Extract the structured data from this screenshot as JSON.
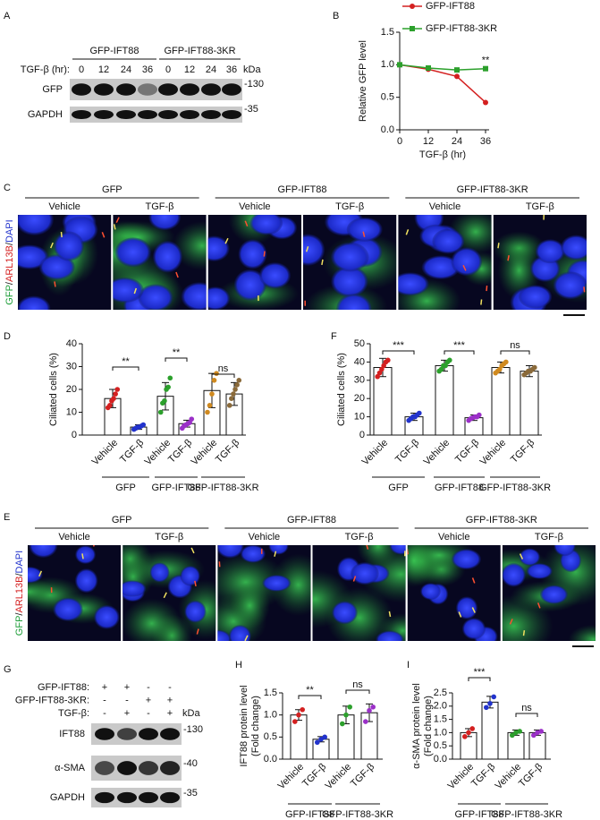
{
  "blot_a": {
    "label": "A",
    "groups": [
      "GFP-IFT88",
      "GFP-IFT88-3KR"
    ],
    "condition": "TGF-β (hr):",
    "lanes": [
      0,
      12,
      24,
      36,
      0,
      12,
      24,
      36
    ],
    "unit": "kDa",
    "rows": [
      {
        "name": "GFP",
        "marker": "-130"
      },
      {
        "name": "GAPDH",
        "marker": "-35"
      }
    ]
  },
  "images_c": {
    "label": "C",
    "stain": [
      {
        "text": "GFP",
        "color": "#1f9e3a"
      },
      {
        "text": "/",
        "color": "#111111"
      },
      {
        "text": "ARL13B",
        "color": "#d42020"
      },
      {
        "text": "/",
        "color": "#111111"
      },
      {
        "text": "DAPI",
        "color": "#2233cc"
      }
    ],
    "groups": [
      "GFP",
      "GFP-IFT88",
      "GFP-IFT88-3KR"
    ],
    "conditions": [
      "Vehicle",
      "TGF-β"
    ]
  },
  "images_e": {
    "label": "E",
    "stain": [
      {
        "text": "GFP",
        "color": "#1f9e3a"
      },
      {
        "text": "/",
        "color": "#111111"
      },
      {
        "text": "ARL13B",
        "color": "#d42020"
      },
      {
        "text": "/",
        "color": "#111111"
      },
      {
        "text": "DAPI",
        "color": "#2233cc"
      }
    ],
    "groups": [
      "GFP",
      "GFP-IFT88",
      "GFP-IFT88-3KR"
    ],
    "conditions": [
      "Vehicle",
      "TGF-β"
    ]
  },
  "blot_g": {
    "label": "G",
    "conditions": [
      {
        "name": "GFP-IFT88:",
        "signs": [
          "+",
          "+",
          "-",
          "-"
        ]
      },
      {
        "name": "GFP-IFT88-3KR:",
        "signs": [
          "-",
          "-",
          "+",
          "+"
        ]
      },
      {
        "name": "TGF-β:",
        "signs": [
          "-",
          "+",
          "-",
          "+"
        ]
      }
    ],
    "unit": "kDa",
    "rows": [
      {
        "name": "IFT88",
        "marker": "-130"
      },
      {
        "name": "α-SMA",
        "marker": "-40"
      },
      {
        "name": "GAPDH",
        "marker": "-35"
      }
    ]
  },
  "chart_data": [
    {
      "type": "line",
      "label": "B",
      "x": [
        0,
        12,
        24,
        36
      ],
      "xlim": [
        0,
        36
      ],
      "xticks": [
        0,
        12,
        24,
        36
      ],
      "ylim": [
        0,
        1.5
      ],
      "yticks": [
        {
          "value": 0,
          "label": "0.0"
        },
        0.5,
        {
          "value": 1,
          "label": "1.0"
        },
        1.5
      ],
      "xlabel": "TGF-β (hr)",
      "ylabel": "Relative GFP level",
      "series": [
        {
          "name": "GFP-IFT88",
          "color": "#d42020",
          "values": [
            1.0,
            0.93,
            0.82,
            0.42
          ]
        },
        {
          "name": "GFP-IFT88-3KR",
          "color": "#2ca02c",
          "values": [
            1.0,
            0.95,
            0.92,
            0.94
          ]
        }
      ],
      "annotation": "**"
    },
    {
      "type": "bar",
      "label": "D",
      "categories": [
        "Vehicle",
        "TGF-β",
        "Vehicle",
        "TGF-β",
        "Vehicle",
        "TGF-β"
      ],
      "values": [
        16,
        3.5,
        17,
        5,
        19.5,
        18
      ],
      "errors": [
        4,
        1,
        6,
        1.5,
        7.5,
        5
      ],
      "points": [
        [
          12,
          13,
          15,
          16,
          18,
          20
        ],
        [
          2.5,
          3,
          3.5,
          3.5,
          4,
          4.5
        ],
        [
          10,
          14,
          15,
          20,
          21,
          25
        ],
        [
          3,
          4,
          4.5,
          5,
          5.5,
          7
        ],
        [
          10,
          13,
          18,
          24,
          27
        ],
        [
          13,
          16,
          18,
          20,
          22,
          24
        ]
      ],
      "colors": [
        "#d42020",
        "#2233cc",
        "#2ca02c",
        "#9b30c8",
        "#d08a20",
        "#8a6a3a"
      ],
      "ylim": [
        0,
        40
      ],
      "yticks": [
        0,
        10,
        20,
        30,
        40
      ],
      "ylabel": [
        "Ciliated cells  (%)"
      ],
      "groups": [
        "GFP",
        "GFP-IFT88",
        "GFP-IFT88-3KR"
      ],
      "significance": [
        "**",
        "**",
        "ns"
      ]
    },
    {
      "type": "bar",
      "label": "F",
      "categories": [
        "Vehicle",
        "TGF-β",
        "Vehicle",
        "TGF-β",
        "Vehicle",
        "TGF-β"
      ],
      "values": [
        37,
        10,
        38,
        9.5,
        37,
        35
      ],
      "errors": [
        5,
        2,
        3,
        1.5,
        3,
        3
      ],
      "points": [
        [
          32,
          34,
          36,
          38,
          40,
          41
        ],
        [
          8,
          9,
          10,
          10,
          11,
          12
        ],
        [
          35,
          36,
          38,
          38,
          40,
          41
        ],
        [
          8,
          9,
          9.5,
          10,
          10,
          11
        ],
        [
          34,
          35,
          36,
          38,
          39,
          40
        ],
        [
          33,
          34,
          35,
          35,
          36,
          37
        ]
      ],
      "colors": [
        "#d42020",
        "#2233cc",
        "#2ca02c",
        "#9b30c8",
        "#d08a20",
        "#8a6a3a"
      ],
      "ylim": [
        0,
        50
      ],
      "yticks": [
        0,
        10,
        20,
        30,
        40,
        50
      ],
      "ylabel": [
        "Ciliated cells  (%)"
      ],
      "groups": [
        "GFP",
        "GFP-IFT88",
        "GFP-IFT88-3KR"
      ],
      "significance": [
        "***",
        "***",
        "ns"
      ]
    },
    {
      "type": "bar",
      "label": "H",
      "categories": [
        "Vehicle",
        "TGF-β",
        "Vehicle",
        "TGF-β"
      ],
      "values": [
        1.0,
        0.45,
        1.0,
        1.05
      ],
      "errors": [
        0.12,
        0.06,
        0.2,
        0.2
      ],
      "points": [
        [
          0.85,
          1.0,
          1.12
        ],
        [
          0.38,
          0.45,
          0.5
        ],
        [
          0.8,
          1.0,
          1.18
        ],
        [
          0.85,
          1.1,
          1.18
        ]
      ],
      "colors": [
        "#d42020",
        "#2233cc",
        "#2ca02c",
        "#9b30c8"
      ],
      "ylim": [
        0,
        1.5
      ],
      "yticks": [
        {
          "value": 0,
          "label": "0.0"
        },
        0.5,
        {
          "value": 1,
          "label": "1.0"
        },
        1.5
      ],
      "ylabel": [
        "IFT88 protein level",
        "(Fold change)"
      ],
      "groups": [
        "GFP-IFT88",
        "GFP-IFT88-3KR"
      ],
      "significance": [
        "**",
        "ns"
      ]
    },
    {
      "type": "bar",
      "label": "I",
      "categories": [
        "Vehicle",
        "TGF-β",
        "Vehicle",
        "TGF-β"
      ],
      "values": [
        1.0,
        2.15,
        1.0,
        1.0
      ],
      "errors": [
        0.15,
        0.22,
        0.1,
        0.1
      ],
      "points": [
        [
          0.85,
          1.0,
          1.15
        ],
        [
          1.95,
          2.1,
          2.35
        ],
        [
          0.9,
          1.0,
          1.05
        ],
        [
          0.9,
          1.0,
          1.05
        ]
      ],
      "colors": [
        "#d42020",
        "#2233cc",
        "#2ca02c",
        "#9b30c8"
      ],
      "ylim": [
        0,
        2.5
      ],
      "yticks": [
        {
          "value": 0,
          "label": "0.0"
        },
        0.5,
        {
          "value": 1,
          "label": "1.0"
        },
        1.5,
        {
          "value": 2,
          "label": "2.0"
        },
        2.5
      ],
      "ylabel": [
        "α-SMA protein level",
        "(Fold change)"
      ],
      "groups": [
        "GFP-IFT88",
        "GFP-IFT88-3KR"
      ],
      "significance": [
        "***",
        "ns"
      ]
    }
  ]
}
